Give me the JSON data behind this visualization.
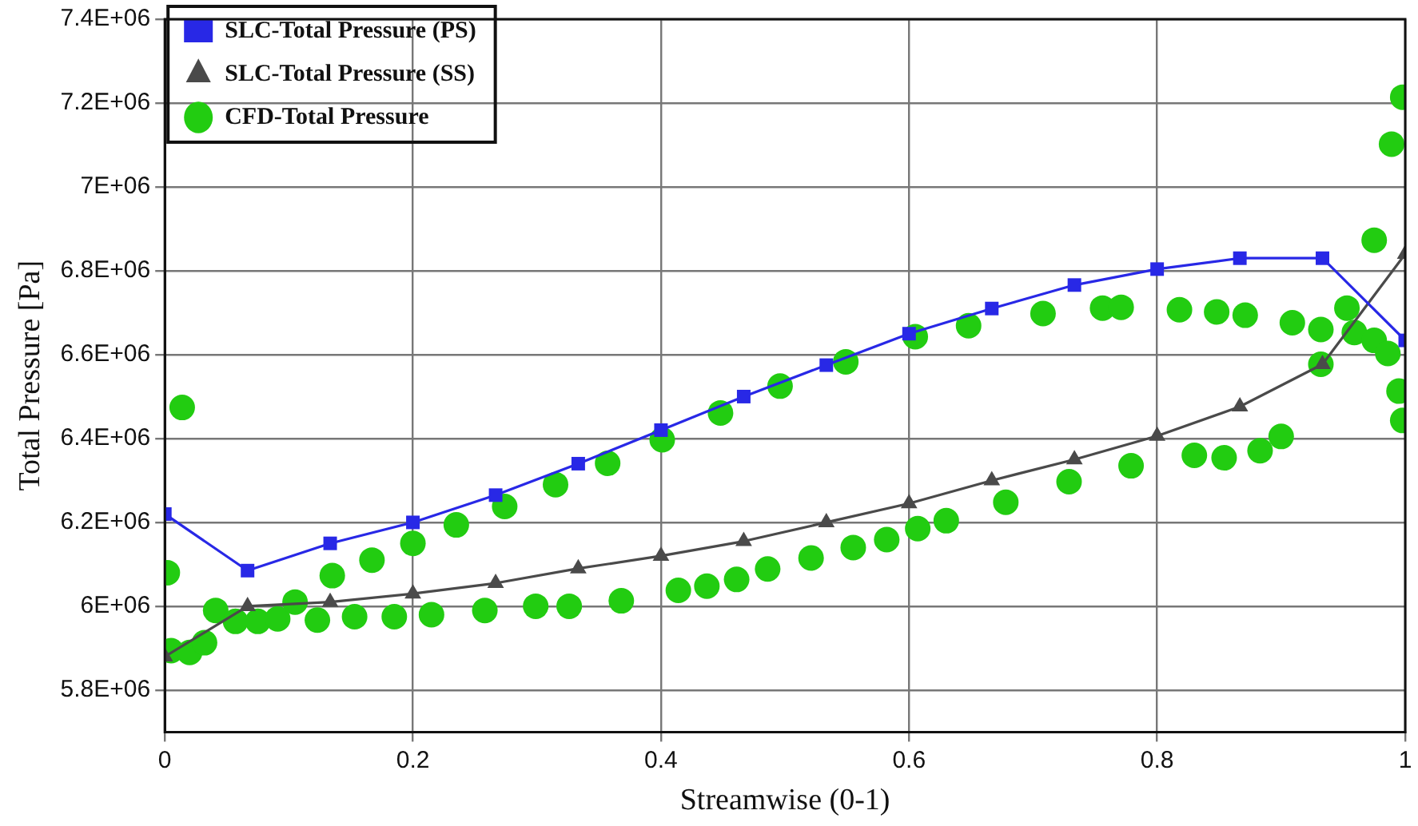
{
  "chart_data": {
    "type": "line",
    "xlabel": "Streamwise (0-1)",
    "ylabel": "Total Pressure [Pa]",
    "xlim": [
      0,
      1
    ],
    "xticks": [
      0,
      0.2,
      0.4,
      0.6,
      0.8,
      1
    ],
    "ylim": [
      5700000,
      7400000
    ],
    "yticks": [
      {
        "value": 5800000,
        "label": "5.8E+06"
      },
      {
        "value": 6000000,
        "label": "6E+06"
      },
      {
        "value": 6200000,
        "label": "6.2E+06"
      },
      {
        "value": 6400000,
        "label": "6.4E+06"
      },
      {
        "value": 6600000,
        "label": "6.6E+06"
      },
      {
        "value": 6800000,
        "label": "6.8E+06"
      },
      {
        "value": 7000000,
        "label": "7E+06"
      },
      {
        "value": 7200000,
        "label": "7.2E+06"
      },
      {
        "value": 7400000,
        "label": "7.4E+06"
      }
    ],
    "grid": true,
    "legend": "top left",
    "series": [
      {
        "name": "SLC-Total Pressure (PS)",
        "marker": "square",
        "color": "#2828e6",
        "x": [
          0,
          0.0667,
          0.1333,
          0.2,
          0.2667,
          0.3333,
          0.4,
          0.4667,
          0.5333,
          0.6,
          0.6667,
          0.7333,
          0.8,
          0.8667,
          0.9333,
          1
        ],
        "values": [
          6220000,
          6085000,
          6150000,
          6200000,
          6265000,
          6340000,
          6420000,
          6500000,
          6575000,
          6650000,
          6710000,
          6766000,
          6804000,
          6830000,
          6830000,
          6634000
        ]
      },
      {
        "name": "SLC-Total Pressure (SS)",
        "marker": "triangle",
        "color": "#4a4a4a",
        "x": [
          0,
          0.0667,
          0.1333,
          0.2,
          0.2667,
          0.3333,
          0.4,
          0.4667,
          0.5333,
          0.6,
          0.6667,
          0.7333,
          0.8,
          0.8667,
          0.9333,
          1
        ],
        "values": [
          5880000,
          6000000,
          6010000,
          6030000,
          6055000,
          6090000,
          6120000,
          6155000,
          6200000,
          6245000,
          6300000,
          6350000,
          6406000,
          6476000,
          6577000,
          6840000
        ]
      },
      {
        "name": "CFD-Total Pressure",
        "type": "scatter",
        "marker": "circle",
        "color": "#22cc11",
        "x": [
          0.002,
          0.005,
          0.014,
          0.02,
          0.032,
          0.041,
          0.057,
          0.075,
          0.091,
          0.105,
          0.123,
          0.135,
          0.153,
          0.167,
          0.185,
          0.2,
          0.215,
          0.235,
          0.258,
          0.274,
          0.299,
          0.315,
          0.326,
          0.357,
          0.368,
          0.401,
          0.414,
          0.437,
          0.448,
          0.461,
          0.486,
          0.496,
          0.521,
          0.549,
          0.555,
          0.582,
          0.605,
          0.607,
          0.63,
          0.648,
          0.678,
          0.708,
          0.729,
          0.756,
          0.771,
          0.779,
          0.818,
          0.83,
          0.848,
          0.854,
          0.871,
          0.883,
          0.9,
          0.909,
          0.932,
          0.932,
          0.953,
          0.959,
          0.975,
          0.975,
          0.986,
          0.989,
          0.995,
          0.998,
          0.998
        ],
        "values": [
          6080000,
          5894000,
          6474000,
          5890000,
          5913000,
          5990000,
          5964000,
          5964000,
          5970000,
          6010000,
          5967000,
          6073000,
          5975000,
          6110000,
          5975000,
          6150000,
          5980000,
          6194000,
          5990000,
          6238000,
          6000000,
          6290000,
          6000000,
          6341000,
          6013000,
          6397000,
          6038000,
          6048000,
          6461000,
          6064000,
          6089000,
          6525000,
          6115000,
          6583000,
          6140000,
          6159000,
          6643000,
          6185000,
          6204000,
          6669000,
          6248000,
          6698000,
          6297000,
          6711000,
          6713000,
          6335000,
          6707000,
          6360000,
          6702000,
          6354000,
          6694000,
          6371000,
          6405000,
          6676000,
          6660000,
          6577000,
          6711000,
          6653000,
          6873000,
          6634000,
          6603000,
          7102000,
          6513000,
          6443000,
          7214000
        ]
      }
    ]
  }
}
